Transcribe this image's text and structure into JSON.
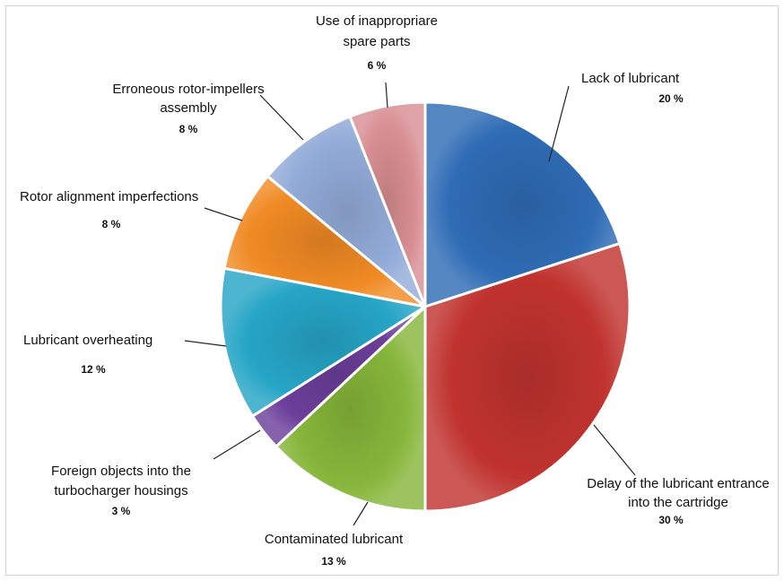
{
  "chart_data": {
    "type": "pie",
    "slices": [
      {
        "label": [
          "Lack of lubricant"
        ],
        "value": 20,
        "value_label": "20 %",
        "color": "#2f6cb5"
      },
      {
        "label": [
          "Delay of the lubricant entrance",
          "into the cartridge"
        ],
        "value": 30,
        "value_label": "30 %",
        "color": "#c0332f"
      },
      {
        "label": [
          "Contaminated lubricant"
        ],
        "value": 13,
        "value_label": "13 %",
        "color": "#86b63a"
      },
      {
        "label": [
          "Foreign objects into the",
          "turbocharger housings"
        ],
        "value": 3,
        "value_label": "3 %",
        "color": "#6c3f9a"
      },
      {
        "label": [
          "Lubricant overheating"
        ],
        "value": 12,
        "value_label": "12 %",
        "color": "#26a5c6"
      },
      {
        "label": [
          "Rotor alignment imperfections"
        ],
        "value": 8,
        "value_label": "8 %",
        "color": "#f08a24"
      },
      {
        "label": [
          "Erroneous rotor-impellers",
          "assembly"
        ],
        "value": 8,
        "value_label": "8 %",
        "color": "#93acd8"
      },
      {
        "label": [
          "Use of inappropriare",
          "spare parts"
        ],
        "value": 6,
        "value_label": "6 %",
        "color": "#d88e92"
      }
    ]
  }
}
